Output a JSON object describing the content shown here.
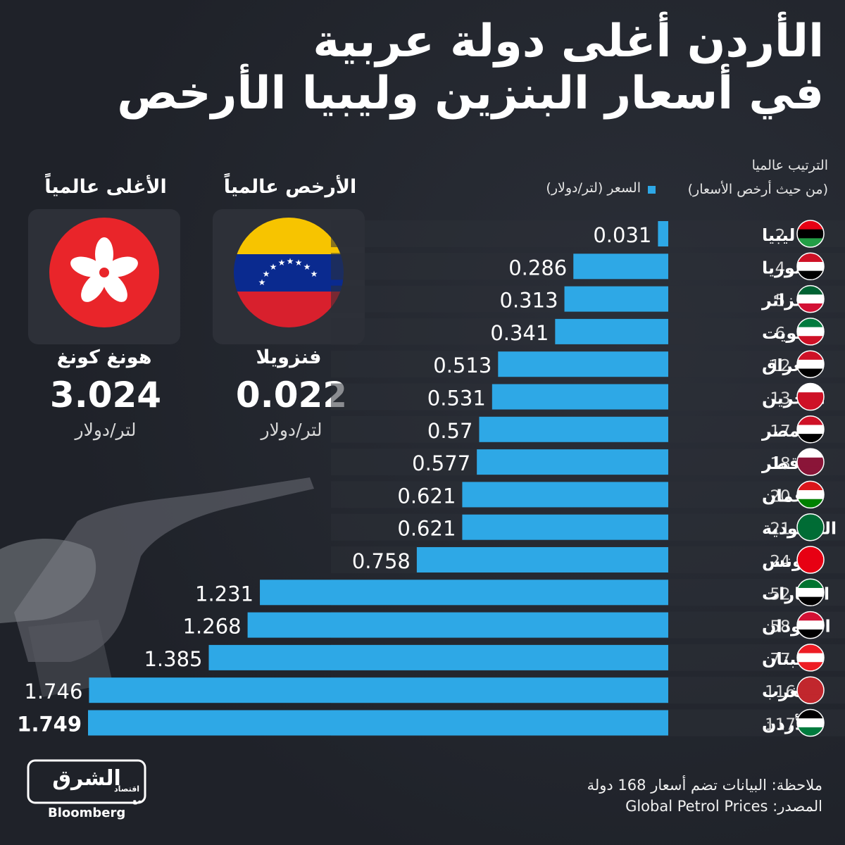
{
  "title": {
    "line1": "الأردن أغلى دولة عربية",
    "line2": "في أسعار البنزين وليبيا الأرخص"
  },
  "legend": {
    "rank_label": "الترتيب عالميا",
    "rank_sub": "(من حيث أرخص الأسعار)",
    "price_label": "السعر (لتر/دولار)",
    "bar_color": "#2ea8e6"
  },
  "cheapest": {
    "heading": "الأرخص عالمياً",
    "country": "فنزويلا",
    "value": "0.022",
    "unit": "لتر/دولار",
    "flag_icon": "venezuela-flag-icon"
  },
  "most_expensive": {
    "heading": "الأغلى عالمياً",
    "country": "هونغ كونغ",
    "value": "3.024",
    "unit": "لتر/دولار",
    "flag_icon": "hong-kong-flag-icon"
  },
  "chart_data": {
    "type": "bar",
    "orientation": "horizontal",
    "categories": [
      "ليبيا",
      "سوريا",
      "الجزائر",
      "الكويت",
      "العراق",
      "البحرين",
      "مصر",
      "قطر",
      "عمان",
      "السعودية",
      "تونس",
      "الإمارات",
      "السودان",
      "لبنان",
      "المغرب",
      "الأردن"
    ],
    "ranks": [
      "2",
      "4",
      "5",
      "6",
      "12",
      "13",
      "17",
      "18",
      "20",
      "21",
      "24",
      "52",
      "58",
      "77",
      "116",
      "117"
    ],
    "values": [
      0.031,
      0.286,
      0.313,
      0.341,
      0.513,
      0.531,
      0.57,
      0.577,
      0.621,
      0.621,
      0.758,
      1.231,
      1.268,
      1.385,
      1.746,
      1.749
    ],
    "labels": [
      "0.031",
      "0.286",
      "0.313",
      "0.341",
      "0.513",
      "0.531",
      "0.57",
      "0.577",
      "0.621",
      "0.621",
      "0.758",
      "1.231",
      "1.268",
      "1.385",
      "1.746",
      "1.749"
    ],
    "flag_icons": [
      "libya-flag-icon",
      "syria-flag-icon",
      "algeria-flag-icon",
      "kuwait-flag-icon",
      "iraq-flag-icon",
      "bahrain-flag-icon",
      "egypt-flag-icon",
      "qatar-flag-icon",
      "oman-flag-icon",
      "saudi-flag-icon",
      "tunisia-flag-icon",
      "uae-flag-icon",
      "sudan-flag-icon",
      "lebanon-flag-icon",
      "morocco-flag-icon",
      "jordan-flag-icon"
    ],
    "highlight_index": 15,
    "xlim": [
      0,
      1.749
    ],
    "bar_color": "#2ea8e6"
  },
  "footer": {
    "note": "ملاحظة: البيانات تضم أسعار 168 دولة",
    "source": "المصدر: Global Petrol Prices"
  },
  "logo": {
    "brand": "الشرق",
    "sub": "اقتصاد",
    "partner": "Bloomberg",
    "with": "مع"
  }
}
